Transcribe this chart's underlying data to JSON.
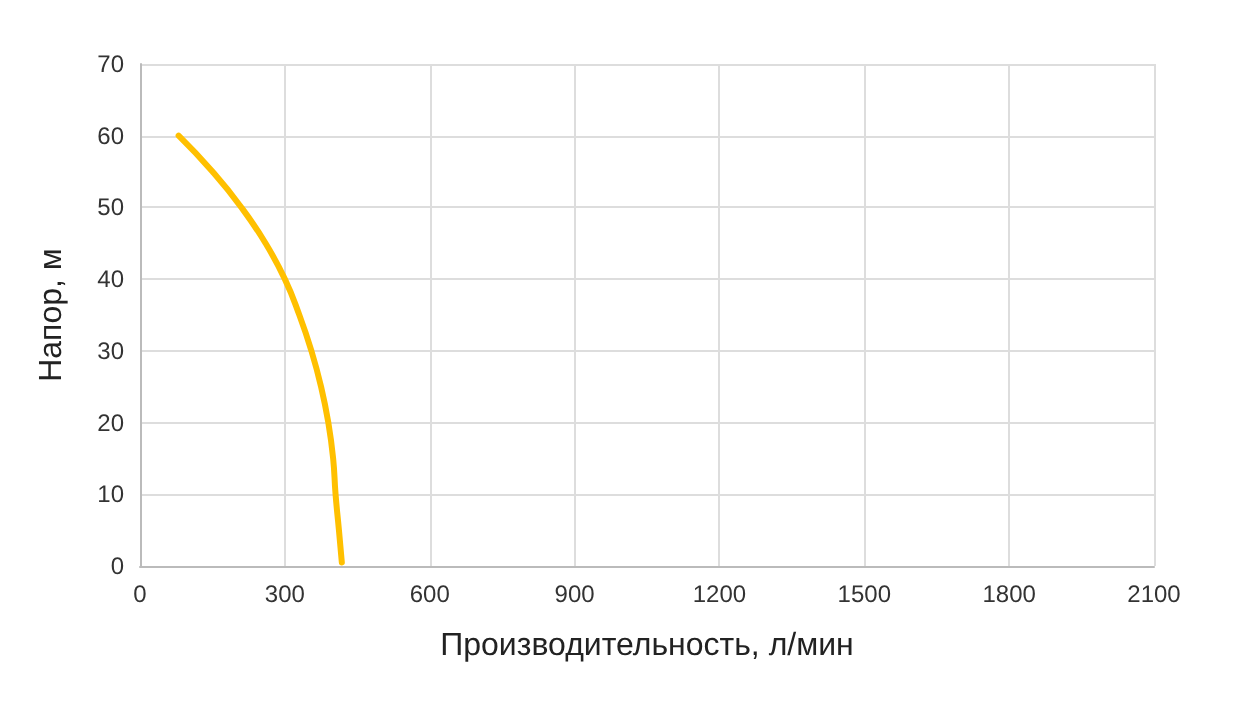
{
  "chart_data": {
    "type": "line",
    "xlabel": "Производительность, л/мин",
    "ylabel": "Напор, м",
    "x": [
      80,
      150,
      210,
      260,
      300,
      330,
      355,
      375,
      390,
      400,
      405,
      412,
      418
    ],
    "series": [
      {
        "color": "#ffc000",
        "values": [
          60,
          55,
          50,
          45,
          40,
          35,
          30,
          25,
          20,
          15,
          10,
          5,
          0.5
        ]
      }
    ],
    "xlim": [
      0,
      2100
    ],
    "xticks": [
      0,
      300,
      600,
      900,
      1200,
      1500,
      1800,
      2100
    ],
    "ylim": [
      0,
      70
    ],
    "yticks": [
      0,
      10,
      20,
      30,
      40,
      50,
      60,
      70
    ],
    "grid": true,
    "marker": "none",
    "line_style": "solid"
  }
}
